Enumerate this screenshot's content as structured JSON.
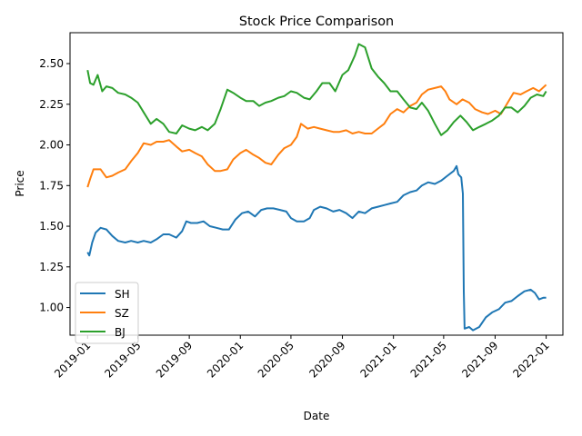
{
  "chart_data": {
    "type": "line",
    "title": "Stock Price Comparison",
    "xlabel": "Date",
    "ylabel": "Price",
    "x_axis_type": "date",
    "xlim": [
      "2018-11-20",
      "2022-02-10"
    ],
    "ylim": [
      0.83,
      2.69
    ],
    "x_ticks": [
      "2019-01",
      "2019-05",
      "2019-09",
      "2020-01",
      "2020-05",
      "2020-09",
      "2021-01",
      "2021-05",
      "2021-09",
      "2022-01"
    ],
    "y_ticks": [
      1.0,
      1.25,
      1.5,
      1.75,
      2.0,
      2.25,
      2.5
    ],
    "y_tick_labels": [
      "1.00",
      "1.25",
      "1.50",
      "1.75",
      "2.00",
      "2.25",
      "2.50"
    ],
    "grid": false,
    "legend_position": "lower-left",
    "colors": {
      "SH": "#1f77b4",
      "SZ": "#ff7f0e",
      "BJ": "#2ca02c"
    },
    "series": [
      {
        "name": "SH",
        "color": "#1f77b4",
        "points": [
          [
            "2019-01-01",
            1.34
          ],
          [
            "2019-01-05",
            1.32
          ],
          [
            "2019-01-12",
            1.4
          ],
          [
            "2019-01-20",
            1.46
          ],
          [
            "2019-02-01",
            1.49
          ],
          [
            "2019-02-15",
            1.48
          ],
          [
            "2019-03-01",
            1.44
          ],
          [
            "2019-03-15",
            1.41
          ],
          [
            "2019-04-01",
            1.4
          ],
          [
            "2019-04-15",
            1.41
          ],
          [
            "2019-05-01",
            1.4
          ],
          [
            "2019-05-15",
            1.41
          ],
          [
            "2019-06-01",
            1.4
          ],
          [
            "2019-06-15",
            1.42
          ],
          [
            "2019-07-01",
            1.45
          ],
          [
            "2019-07-15",
            1.45
          ],
          [
            "2019-08-01",
            1.43
          ],
          [
            "2019-08-15",
            1.47
          ],
          [
            "2019-08-25",
            1.53
          ],
          [
            "2019-09-05",
            1.52
          ],
          [
            "2019-09-20",
            1.52
          ],
          [
            "2019-10-05",
            1.53
          ],
          [
            "2019-10-20",
            1.5
          ],
          [
            "2019-11-05",
            1.49
          ],
          [
            "2019-11-20",
            1.48
          ],
          [
            "2019-12-05",
            1.48
          ],
          [
            "2019-12-20",
            1.54
          ],
          [
            "2020-01-05",
            1.58
          ],
          [
            "2020-01-20",
            1.59
          ],
          [
            "2020-02-05",
            1.56
          ],
          [
            "2020-02-20",
            1.6
          ],
          [
            "2020-03-05",
            1.61
          ],
          [
            "2020-03-20",
            1.61
          ],
          [
            "2020-04-05",
            1.6
          ],
          [
            "2020-04-20",
            1.59
          ],
          [
            "2020-05-01",
            1.55
          ],
          [
            "2020-05-15",
            1.53
          ],
          [
            "2020-06-01",
            1.53
          ],
          [
            "2020-06-15",
            1.55
          ],
          [
            "2020-06-25",
            1.6
          ],
          [
            "2020-07-10",
            1.62
          ],
          [
            "2020-07-25",
            1.61
          ],
          [
            "2020-08-10",
            1.59
          ],
          [
            "2020-08-25",
            1.6
          ],
          [
            "2020-09-10",
            1.58
          ],
          [
            "2020-09-25",
            1.55
          ],
          [
            "2020-10-10",
            1.59
          ],
          [
            "2020-10-25",
            1.58
          ],
          [
            "2020-11-10",
            1.61
          ],
          [
            "2020-11-25",
            1.62
          ],
          [
            "2020-12-10",
            1.63
          ],
          [
            "2020-12-25",
            1.64
          ],
          [
            "2021-01-10",
            1.65
          ],
          [
            "2021-01-25",
            1.69
          ],
          [
            "2021-02-10",
            1.71
          ],
          [
            "2021-02-25",
            1.72
          ],
          [
            "2021-03-10",
            1.75
          ],
          [
            "2021-03-25",
            1.77
          ],
          [
            "2021-04-10",
            1.76
          ],
          [
            "2021-04-25",
            1.78
          ],
          [
            "2021-05-10",
            1.81
          ],
          [
            "2021-05-25",
            1.84
          ],
          [
            "2021-06-01",
            1.87
          ],
          [
            "2021-06-05",
            1.82
          ],
          [
            "2021-06-12",
            1.8
          ],
          [
            "2021-06-16",
            1.7
          ],
          [
            "2021-06-18",
            1.1
          ],
          [
            "2021-06-20",
            0.87
          ],
          [
            "2021-07-01",
            0.88
          ],
          [
            "2021-07-10",
            0.86
          ],
          [
            "2021-07-25",
            0.88
          ],
          [
            "2021-08-10",
            0.94
          ],
          [
            "2021-08-25",
            0.97
          ],
          [
            "2021-09-10",
            0.99
          ],
          [
            "2021-09-25",
            1.03
          ],
          [
            "2021-10-10",
            1.04
          ],
          [
            "2021-10-25",
            1.07
          ],
          [
            "2021-11-10",
            1.1
          ],
          [
            "2021-11-25",
            1.11
          ],
          [
            "2021-12-05",
            1.09
          ],
          [
            "2021-12-15",
            1.05
          ],
          [
            "2021-12-25",
            1.06
          ],
          [
            "2022-01-01",
            1.06
          ]
        ]
      },
      {
        "name": "SZ",
        "color": "#ff7f0e",
        "points": [
          [
            "2019-01-01",
            1.74
          ],
          [
            "2019-01-07",
            1.79
          ],
          [
            "2019-01-15",
            1.85
          ],
          [
            "2019-02-01",
            1.85
          ],
          [
            "2019-02-15",
            1.8
          ],
          [
            "2019-03-01",
            1.81
          ],
          [
            "2019-03-15",
            1.83
          ],
          [
            "2019-04-01",
            1.85
          ],
          [
            "2019-04-15",
            1.9
          ],
          [
            "2019-05-01",
            1.95
          ],
          [
            "2019-05-15",
            2.01
          ],
          [
            "2019-06-01",
            2.0
          ],
          [
            "2019-06-15",
            2.02
          ],
          [
            "2019-07-01",
            2.02
          ],
          [
            "2019-07-15",
            2.03
          ],
          [
            "2019-08-01",
            1.99
          ],
          [
            "2019-08-15",
            1.96
          ],
          [
            "2019-09-01",
            1.97
          ],
          [
            "2019-09-15",
            1.95
          ],
          [
            "2019-10-01",
            1.93
          ],
          [
            "2019-10-15",
            1.88
          ],
          [
            "2019-11-01",
            1.84
          ],
          [
            "2019-11-15",
            1.84
          ],
          [
            "2019-12-01",
            1.85
          ],
          [
            "2019-12-15",
            1.91
          ],
          [
            "2020-01-01",
            1.95
          ],
          [
            "2020-01-15",
            1.97
          ],
          [
            "2020-02-01",
            1.94
          ],
          [
            "2020-02-15",
            1.92
          ],
          [
            "2020-03-01",
            1.89
          ],
          [
            "2020-03-15",
            1.88
          ],
          [
            "2020-04-01",
            1.94
          ],
          [
            "2020-04-15",
            1.98
          ],
          [
            "2020-05-01",
            2.0
          ],
          [
            "2020-05-15",
            2.05
          ],
          [
            "2020-05-25",
            2.13
          ],
          [
            "2020-06-10",
            2.1
          ],
          [
            "2020-06-25",
            2.11
          ],
          [
            "2020-07-10",
            2.1
          ],
          [
            "2020-07-25",
            2.09
          ],
          [
            "2020-08-10",
            2.08
          ],
          [
            "2020-08-25",
            2.08
          ],
          [
            "2020-09-10",
            2.09
          ],
          [
            "2020-09-25",
            2.07
          ],
          [
            "2020-10-10",
            2.08
          ],
          [
            "2020-10-25",
            2.07
          ],
          [
            "2020-11-10",
            2.07
          ],
          [
            "2020-11-25",
            2.1
          ],
          [
            "2020-12-10",
            2.13
          ],
          [
            "2020-12-25",
            2.19
          ],
          [
            "2021-01-10",
            2.22
          ],
          [
            "2021-01-25",
            2.2
          ],
          [
            "2021-02-10",
            2.24
          ],
          [
            "2021-02-25",
            2.26
          ],
          [
            "2021-03-10",
            2.31
          ],
          [
            "2021-03-25",
            2.34
          ],
          [
            "2021-04-10",
            2.35
          ],
          [
            "2021-04-25",
            2.36
          ],
          [
            "2021-05-05",
            2.33
          ],
          [
            "2021-05-15",
            2.28
          ],
          [
            "2021-06-01",
            2.25
          ],
          [
            "2021-06-15",
            2.28
          ],
          [
            "2021-07-01",
            2.26
          ],
          [
            "2021-07-15",
            2.22
          ],
          [
            "2021-08-01",
            2.2
          ],
          [
            "2021-08-15",
            2.19
          ],
          [
            "2021-09-01",
            2.21
          ],
          [
            "2021-09-15",
            2.19
          ],
          [
            "2021-10-01",
            2.26
          ],
          [
            "2021-10-15",
            2.32
          ],
          [
            "2021-11-01",
            2.31
          ],
          [
            "2021-11-15",
            2.33
          ],
          [
            "2021-12-01",
            2.35
          ],
          [
            "2021-12-15",
            2.33
          ],
          [
            "2022-01-01",
            2.37
          ]
        ]
      },
      {
        "name": "BJ",
        "color": "#2ca02c",
        "points": [
          [
            "2019-01-01",
            2.46
          ],
          [
            "2019-01-07",
            2.38
          ],
          [
            "2019-01-15",
            2.37
          ],
          [
            "2019-01-25",
            2.43
          ],
          [
            "2019-02-05",
            2.33
          ],
          [
            "2019-02-15",
            2.36
          ],
          [
            "2019-03-01",
            2.35
          ],
          [
            "2019-03-15",
            2.32
          ],
          [
            "2019-04-01",
            2.31
          ],
          [
            "2019-04-15",
            2.29
          ],
          [
            "2019-05-01",
            2.26
          ],
          [
            "2019-05-15",
            2.2
          ],
          [
            "2019-06-01",
            2.13
          ],
          [
            "2019-06-15",
            2.16
          ],
          [
            "2019-07-01",
            2.13
          ],
          [
            "2019-07-15",
            2.08
          ],
          [
            "2019-08-01",
            2.07
          ],
          [
            "2019-08-15",
            2.12
          ],
          [
            "2019-09-01",
            2.1
          ],
          [
            "2019-09-15",
            2.09
          ],
          [
            "2019-10-01",
            2.11
          ],
          [
            "2019-10-15",
            2.09
          ],
          [
            "2019-11-01",
            2.13
          ],
          [
            "2019-11-15",
            2.22
          ],
          [
            "2019-12-01",
            2.34
          ],
          [
            "2019-12-15",
            2.32
          ],
          [
            "2020-01-01",
            2.29
          ],
          [
            "2020-01-15",
            2.27
          ],
          [
            "2020-02-01",
            2.27
          ],
          [
            "2020-02-15",
            2.24
          ],
          [
            "2020-03-01",
            2.26
          ],
          [
            "2020-03-15",
            2.27
          ],
          [
            "2020-04-01",
            2.29
          ],
          [
            "2020-04-15",
            2.3
          ],
          [
            "2020-05-01",
            2.33
          ],
          [
            "2020-05-15",
            2.32
          ],
          [
            "2020-06-01",
            2.29
          ],
          [
            "2020-06-15",
            2.28
          ],
          [
            "2020-07-01",
            2.33
          ],
          [
            "2020-07-15",
            2.38
          ],
          [
            "2020-08-01",
            2.38
          ],
          [
            "2020-08-15",
            2.33
          ],
          [
            "2020-09-01",
            2.43
          ],
          [
            "2020-09-15",
            2.46
          ],
          [
            "2020-10-01",
            2.55
          ],
          [
            "2020-10-10",
            2.62
          ],
          [
            "2020-10-25",
            2.6
          ],
          [
            "2020-11-10",
            2.47
          ],
          [
            "2020-11-25",
            2.42
          ],
          [
            "2020-12-10",
            2.38
          ],
          [
            "2020-12-25",
            2.33
          ],
          [
            "2021-01-10",
            2.33
          ],
          [
            "2021-01-25",
            2.28
          ],
          [
            "2021-02-10",
            2.23
          ],
          [
            "2021-02-25",
            2.22
          ],
          [
            "2021-03-10",
            2.26
          ],
          [
            "2021-03-25",
            2.21
          ],
          [
            "2021-04-10",
            2.13
          ],
          [
            "2021-04-25",
            2.06
          ],
          [
            "2021-05-10",
            2.09
          ],
          [
            "2021-05-25",
            2.14
          ],
          [
            "2021-06-10",
            2.18
          ],
          [
            "2021-06-25",
            2.14
          ],
          [
            "2021-07-10",
            2.09
          ],
          [
            "2021-07-25",
            2.11
          ],
          [
            "2021-08-10",
            2.13
          ],
          [
            "2021-08-25",
            2.15
          ],
          [
            "2021-09-10",
            2.18
          ],
          [
            "2021-09-25",
            2.23
          ],
          [
            "2021-10-10",
            2.23
          ],
          [
            "2021-10-25",
            2.2
          ],
          [
            "2021-11-10",
            2.24
          ],
          [
            "2021-11-25",
            2.29
          ],
          [
            "2021-12-10",
            2.31
          ],
          [
            "2021-12-25",
            2.3
          ],
          [
            "2022-01-01",
            2.33
          ]
        ]
      }
    ]
  }
}
